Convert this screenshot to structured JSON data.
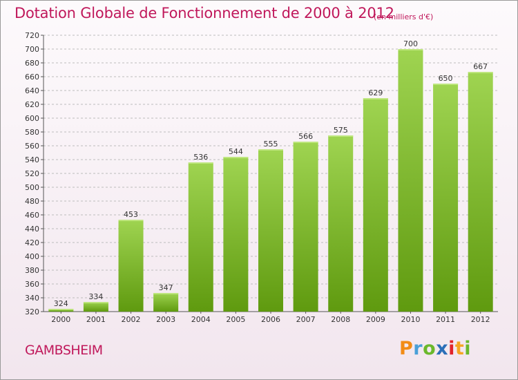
{
  "header": {
    "title": "Dotation Globale de Fonctionnement de 2000 à 2012",
    "unit": "(en milliers d'€)"
  },
  "footer": {
    "commune": "GAMBSHEIM",
    "logo": "Proxiti",
    "logo_icon": "proxiti-logo-icon"
  },
  "colors": {
    "title": "#c0185b",
    "bar_top": "#9fd451",
    "bar_bottom": "#5f9a0f",
    "grid": "#bcbcbc"
  },
  "chart_data": {
    "type": "bar",
    "title": "Dotation Globale de Fonctionnement de 2000 à 2012",
    "subtitle": "(en milliers d'€)",
    "xlabel": "",
    "ylabel": "",
    "categories": [
      "2000",
      "2001",
      "2002",
      "2003",
      "2004",
      "2005",
      "2006",
      "2007",
      "2008",
      "2009",
      "2010",
      "2011",
      "2012"
    ],
    "values": [
      324,
      334,
      453,
      347,
      536,
      544,
      555,
      566,
      575,
      629,
      700,
      650,
      667
    ],
    "ylim": [
      320,
      720
    ],
    "ytick_step": 20,
    "grid": true,
    "legend": "none"
  }
}
